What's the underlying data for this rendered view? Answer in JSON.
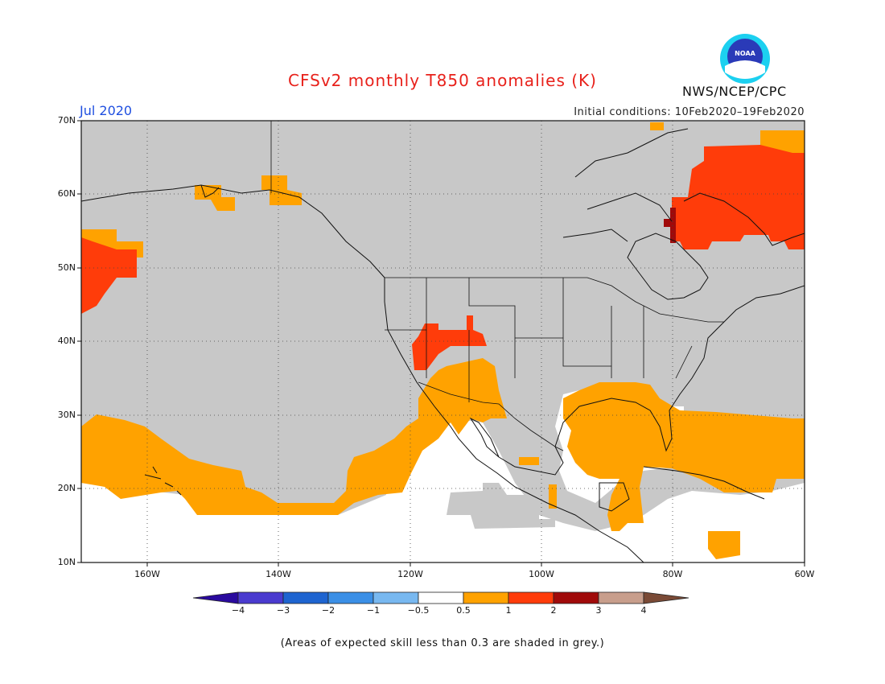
{
  "title": "CFSv2 monthly T850 anomalies (K)",
  "valid_month": "Jul 2020",
  "initial_conditions": "Initial conditions: 10Feb2020–19Feb2020",
  "agency": "NWS/NCEP/CPC",
  "logo": {
    "text": "NOAA",
    "icon": "noaa-logo"
  },
  "map": {
    "projection": "cylindrical",
    "lon_range": [
      -170,
      -60
    ],
    "lat_range": [
      10,
      70
    ],
    "grid": "dotted",
    "lat_labels": [
      "70N",
      "60N",
      "50N",
      "40N",
      "30N",
      "20N",
      "10N"
    ],
    "lon_labels": [
      "160W",
      "140W",
      "120W",
      "100W",
      "80W",
      "60W"
    ],
    "skill_mask_color": "#c8c8c8",
    "ocean_no_signal_color": "#ffffff"
  },
  "colorbar": {
    "tick_labels": [
      "−4",
      "−3",
      "−2",
      "−1",
      "−0.5",
      "0.5",
      "1",
      "2",
      "3",
      "4"
    ],
    "colors": [
      "#2a0a9e",
      "#4a3bcf",
      "#1e64d0",
      "#3b8fe6",
      "#78b8f0",
      "#ffffff",
      "#ffa200",
      "#ff3c0a",
      "#a00a0a",
      "#c89e8c",
      "#7a4a36"
    ]
  },
  "footnote": "(Areas of expected skill less than 0.3 are shaded in grey.)"
}
